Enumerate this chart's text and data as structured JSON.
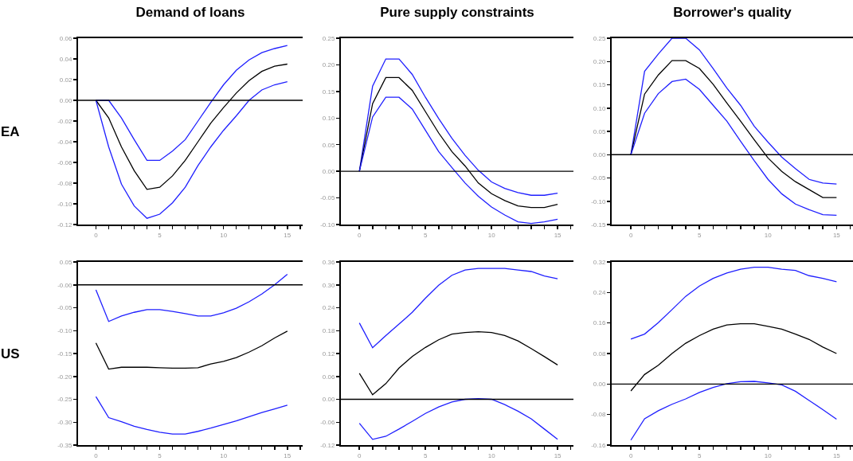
{
  "chart_data": [
    {
      "type": "line",
      "title": "Demand of loans",
      "ylabel": "EA",
      "x": [
        0,
        1,
        2,
        3,
        4,
        5,
        6,
        7,
        8,
        9,
        10,
        11,
        12,
        13,
        14,
        15
      ],
      "xlim": [
        -1.4,
        16.2
      ],
      "xticks": [
        0,
        {
          "value": 1,
          "label": null
        },
        {
          "value": 2,
          "label": null
        },
        {
          "value": 3,
          "label": null
        },
        {
          "value": 4,
          "label": null
        },
        5,
        {
          "value": 6,
          "label": null
        },
        {
          "value": 7,
          "label": null
        },
        {
          "value": 8,
          "label": null
        },
        {
          "value": 9,
          "label": null
        },
        10,
        {
          "value": 11,
          "label": null
        },
        {
          "value": 12,
          "label": null
        },
        {
          "value": 13,
          "label": null
        },
        {
          "value": 14,
          "label": null
        },
        15,
        {
          "value": 16,
          "label": null
        }
      ],
      "ylim": [
        -0.12,
        0.06
      ],
      "yticks": [
        {
          "value": -0.12,
          "label": "-0.12"
        },
        {
          "value": -0.1,
          "label": "-0.10"
        },
        {
          "value": -0.08,
          "label": "-0.08"
        },
        {
          "value": -0.06,
          "label": "-0.06"
        },
        {
          "value": -0.04,
          "label": "-0.04"
        },
        {
          "value": -0.02,
          "label": "-0.02"
        },
        {
          "value": 0,
          "label": "0.00"
        },
        {
          "value": 0.02,
          "label": "0.02"
        },
        {
          "value": 0.04,
          "label": "0.04"
        },
        {
          "value": 0.06,
          "label": "0.06"
        }
      ],
      "ref_lines": [
        {
          "axis": "y",
          "value": 0,
          "color": "#000000"
        }
      ],
      "series": [
        {
          "color": "#1f1fff",
          "values": [
            0,
            0,
            -0.017,
            -0.038,
            -0.058,
            -0.058,
            -0.049,
            -0.038,
            -0.02,
            -0.002,
            0.015,
            0.029,
            0.039,
            0.046,
            0.05,
            0.053
          ]
        },
        {
          "color": "#000000",
          "values": [
            0,
            -0.017,
            -0.045,
            -0.068,
            -0.086,
            -0.084,
            -0.073,
            -0.058,
            -0.04,
            -0.022,
            -0.007,
            0.007,
            0.019,
            0.028,
            0.033,
            0.035
          ]
        },
        {
          "color": "#1f1fff",
          "values": [
            0,
            -0.045,
            -0.081,
            -0.102,
            -0.114,
            -0.11,
            -0.099,
            -0.084,
            -0.063,
            -0.045,
            -0.029,
            -0.015,
            0.0,
            0.01,
            0.015,
            0.018
          ]
        }
      ]
    },
    {
      "type": "line",
      "title": "Pure supply constraints",
      "x": [
        0,
        1,
        2,
        3,
        4,
        5,
        6,
        7,
        8,
        9,
        10,
        11,
        12,
        13,
        14,
        15
      ],
      "xlim": [
        -1.4,
        16.2
      ],
      "xticks": [
        0,
        {
          "value": 1,
          "label": null
        },
        {
          "value": 2,
          "label": null
        },
        {
          "value": 3,
          "label": null
        },
        {
          "value": 4,
          "label": null
        },
        5,
        {
          "value": 6,
          "label": null
        },
        {
          "value": 7,
          "label": null
        },
        {
          "value": 8,
          "label": null
        },
        {
          "value": 9,
          "label": null
        },
        10,
        {
          "value": 11,
          "label": null
        },
        {
          "value": 12,
          "label": null
        },
        {
          "value": 13,
          "label": null
        },
        {
          "value": 14,
          "label": null
        },
        15,
        {
          "value": 16,
          "label": null
        }
      ],
      "ylim": [
        -0.1,
        0.25
      ],
      "yticks": [
        {
          "value": -0.1,
          "label": "-0.10"
        },
        {
          "value": -0.05,
          "label": "-0.05"
        },
        {
          "value": 0,
          "label": "0.00"
        },
        {
          "value": 0.05,
          "label": "0.05"
        },
        {
          "value": 0.1,
          "label": "0.10"
        },
        {
          "value": 0.15,
          "label": "0.15"
        },
        {
          "value": 0.2,
          "label": "0.20"
        },
        {
          "value": 0.25,
          "label": "0.25"
        }
      ],
      "ref_lines": [
        {
          "axis": "y",
          "value": 0,
          "color": "#000000"
        }
      ],
      "series": [
        {
          "color": "#1f1fff",
          "values": [
            0,
            0.16,
            0.211,
            0.211,
            0.182,
            0.139,
            0.099,
            0.062,
            0.03,
            0.002,
            -0.02,
            -0.032,
            -0.04,
            -0.045,
            -0.045,
            -0.041
          ]
        },
        {
          "color": "#000000",
          "values": [
            0,
            0.127,
            0.176,
            0.176,
            0.152,
            0.112,
            0.072,
            0.037,
            0.01,
            -0.022,
            -0.042,
            -0.055,
            -0.065,
            -0.068,
            -0.068,
            -0.062
          ]
        },
        {
          "color": "#1f1fff",
          "values": [
            0,
            0.102,
            0.139,
            0.139,
            0.117,
            0.077,
            0.037,
            0.007,
            -0.022,
            -0.047,
            -0.067,
            -0.082,
            -0.095,
            -0.098,
            -0.095,
            -0.09
          ]
        }
      ]
    },
    {
      "type": "line",
      "title": "Borrower's quality",
      "x": [
        0,
        1,
        2,
        3,
        4,
        5,
        6,
        7,
        8,
        9,
        10,
        11,
        12,
        13,
        14,
        15
      ],
      "xlim": [
        -1.4,
        16.2
      ],
      "xticks": [
        0,
        {
          "value": 1,
          "label": null
        },
        {
          "value": 2,
          "label": null
        },
        {
          "value": 3,
          "label": null
        },
        {
          "value": 4,
          "label": null
        },
        5,
        {
          "value": 6,
          "label": null
        },
        {
          "value": 7,
          "label": null
        },
        {
          "value": 8,
          "label": null
        },
        {
          "value": 9,
          "label": null
        },
        10,
        {
          "value": 11,
          "label": null
        },
        {
          "value": 12,
          "label": null
        },
        {
          "value": 13,
          "label": null
        },
        {
          "value": 14,
          "label": null
        },
        15,
        {
          "value": 16,
          "label": null
        }
      ],
      "ylim": [
        -0.15,
        0.25
      ],
      "yticks": [
        {
          "value": -0.15,
          "label": "-0.15"
        },
        {
          "value": -0.1,
          "label": "-0.10"
        },
        {
          "value": -0.05,
          "label": "-0.05"
        },
        {
          "value": 0,
          "label": "0.00"
        },
        {
          "value": 0.05,
          "label": "0.05"
        },
        {
          "value": 0.1,
          "label": "0.10"
        },
        {
          "value": 0.15,
          "label": "0.15"
        },
        {
          "value": 0.2,
          "label": "0.20"
        },
        {
          "value": 0.25,
          "label": "0.25"
        }
      ],
      "ref_lines": [
        {
          "axis": "y",
          "value": 0,
          "color": "#000000"
        }
      ],
      "series": [
        {
          "color": "#1f1fff",
          "values": [
            0,
            0.179,
            0.216,
            0.25,
            0.25,
            0.225,
            0.185,
            0.143,
            0.106,
            0.061,
            0.027,
            -0.005,
            -0.03,
            -0.053,
            -0.061,
            -0.063
          ]
        },
        {
          "color": "#000000",
          "values": [
            0,
            0.13,
            0.171,
            0.202,
            0.202,
            0.185,
            0.151,
            0.111,
            0.072,
            0.032,
            -0.007,
            -0.036,
            -0.058,
            -0.075,
            -0.092,
            -0.092
          ]
        },
        {
          "color": "#1f1fff",
          "values": [
            0,
            0.089,
            0.131,
            0.157,
            0.162,
            0.14,
            0.106,
            0.072,
            0.029,
            -0.013,
            -0.053,
            -0.084,
            -0.106,
            -0.118,
            -0.129,
            -0.13
          ]
        }
      ]
    },
    {
      "type": "line",
      "ylabel": "US",
      "x": [
        0,
        1,
        2,
        3,
        4,
        5,
        6,
        7,
        8,
        9,
        10,
        11,
        12,
        13,
        14,
        15
      ],
      "xlim": [
        -1.4,
        16.2
      ],
      "xticks": [
        0,
        {
          "value": 1,
          "label": null
        },
        {
          "value": 2,
          "label": null
        },
        {
          "value": 3,
          "label": null
        },
        {
          "value": 4,
          "label": null
        },
        5,
        {
          "value": 6,
          "label": null
        },
        {
          "value": 7,
          "label": null
        },
        {
          "value": 8,
          "label": null
        },
        {
          "value": 9,
          "label": null
        },
        10,
        {
          "value": 11,
          "label": null
        },
        {
          "value": 12,
          "label": null
        },
        {
          "value": 13,
          "label": null
        },
        {
          "value": 14,
          "label": null
        },
        15,
        {
          "value": 16,
          "label": null
        }
      ],
      "ylim": [
        -0.35,
        0.05
      ],
      "yticks": [
        {
          "value": -0.35,
          "label": "-0.35"
        },
        {
          "value": -0.3,
          "label": "-0.30"
        },
        {
          "value": -0.25,
          "label": "-0.25"
        },
        {
          "value": -0.2,
          "label": "-0.20"
        },
        {
          "value": -0.15,
          "label": "-0.15"
        },
        {
          "value": -0.1,
          "label": "-0.10"
        },
        {
          "value": -0.05,
          "label": "-0.05"
        },
        {
          "value": 0,
          "label": "-0.00"
        },
        {
          "value": 0.05,
          "label": "0.05"
        }
      ],
      "ref_lines": [
        {
          "axis": "y",
          "value": 0,
          "color": "#000000"
        }
      ],
      "series": [
        {
          "color": "#1f1fff",
          "values": [
            -0.011,
            -0.08,
            -0.068,
            -0.06,
            -0.054,
            -0.054,
            -0.058,
            -0.063,
            -0.068,
            -0.068,
            -0.061,
            -0.051,
            -0.037,
            -0.02,
            0.0,
            0.023
          ]
        },
        {
          "color": "#000000",
          "values": [
            -0.127,
            -0.184,
            -0.18,
            -0.18,
            -0.18,
            -0.181,
            -0.182,
            -0.182,
            -0.181,
            -0.173,
            -0.167,
            -0.159,
            -0.147,
            -0.133,
            -0.116,
            -0.101
          ]
        },
        {
          "color": "#1f1fff",
          "values": [
            -0.244,
            -0.29,
            -0.299,
            -0.309,
            -0.316,
            -0.322,
            -0.326,
            -0.326,
            -0.32,
            -0.313,
            -0.305,
            -0.297,
            -0.288,
            -0.279,
            -0.271,
            -0.263
          ]
        }
      ]
    },
    {
      "type": "line",
      "x": [
        0,
        1,
        2,
        3,
        4,
        5,
        6,
        7,
        8,
        9,
        10,
        11,
        12,
        13,
        14,
        15
      ],
      "xlim": [
        -1.4,
        16.2
      ],
      "xticks": [
        0,
        {
          "value": 1,
          "label": null
        },
        {
          "value": 2,
          "label": null
        },
        {
          "value": 3,
          "label": null
        },
        {
          "value": 4,
          "label": null
        },
        5,
        {
          "value": 6,
          "label": null
        },
        {
          "value": 7,
          "label": null
        },
        {
          "value": 8,
          "label": null
        },
        {
          "value": 9,
          "label": null
        },
        10,
        {
          "value": 11,
          "label": null
        },
        {
          "value": 12,
          "label": null
        },
        {
          "value": 13,
          "label": null
        },
        {
          "value": 14,
          "label": null
        },
        15,
        {
          "value": 16,
          "label": null
        }
      ],
      "ylim": [
        -0.12,
        0.36
      ],
      "yticks": [
        {
          "value": -0.12,
          "label": "-0.12"
        },
        {
          "value": -0.06,
          "label": "-0.06"
        },
        {
          "value": 0,
          "label": "0.00"
        },
        {
          "value": 0.06,
          "label": "0.06"
        },
        {
          "value": 0.12,
          "label": "0.12"
        },
        {
          "value": 0.18,
          "label": "0.18"
        },
        {
          "value": 0.24,
          "label": "0.24"
        },
        {
          "value": 0.3,
          "label": "0.30"
        },
        {
          "value": 0.36,
          "label": "0.36"
        }
      ],
      "ref_lines": [
        {
          "axis": "y",
          "value": 0,
          "color": "#000000"
        }
      ],
      "series": [
        {
          "color": "#1f1fff",
          "values": [
            0.2,
            0.135,
            0.167,
            0.197,
            0.228,
            0.265,
            0.299,
            0.325,
            0.339,
            0.343,
            0.343,
            0.343,
            0.339,
            0.335,
            0.323,
            0.316
          ]
        },
        {
          "color": "#000000",
          "values": [
            0.068,
            0.012,
            0.041,
            0.082,
            0.112,
            0.136,
            0.156,
            0.171,
            0.175,
            0.177,
            0.175,
            0.167,
            0.153,
            0.133,
            0.112,
            0.09
          ]
        },
        {
          "color": "#1f1fff",
          "values": [
            -0.063,
            -0.105,
            -0.097,
            -0.078,
            -0.058,
            -0.037,
            -0.02,
            -0.007,
            0.0,
            0.002,
            0.0,
            -0.014,
            -0.031,
            -0.051,
            -0.078,
            -0.105
          ]
        }
      ]
    },
    {
      "type": "line",
      "x": [
        0,
        1,
        2,
        3,
        4,
        5,
        6,
        7,
        8,
        9,
        10,
        11,
        12,
        13,
        14,
        15
      ],
      "xlim": [
        -1.4,
        16.2
      ],
      "xticks": [
        0,
        {
          "value": 1,
          "label": null
        },
        {
          "value": 2,
          "label": null
        },
        {
          "value": 3,
          "label": null
        },
        {
          "value": 4,
          "label": null
        },
        5,
        {
          "value": 6,
          "label": null
        },
        {
          "value": 7,
          "label": null
        },
        {
          "value": 8,
          "label": null
        },
        {
          "value": 9,
          "label": null
        },
        10,
        {
          "value": 11,
          "label": null
        },
        {
          "value": 12,
          "label": null
        },
        {
          "value": 13,
          "label": null
        },
        {
          "value": 14,
          "label": null
        },
        15,
        {
          "value": 16,
          "label": null
        }
      ],
      "ylim": [
        -0.16,
        0.32
      ],
      "yticks": [
        {
          "value": -0.16,
          "label": "-0.16"
        },
        {
          "value": -0.08,
          "label": "-0.08"
        },
        {
          "value": 0,
          "label": "0.00"
        },
        {
          "value": 0.08,
          "label": "0.08"
        },
        {
          "value": 0.16,
          "label": "0.16"
        },
        {
          "value": 0.24,
          "label": "0.24"
        },
        {
          "value": 0.32,
          "label": "0.32"
        }
      ],
      "ref_lines": [
        {
          "axis": "y",
          "value": 0,
          "color": "#000000"
        }
      ],
      "series": [
        {
          "color": "#1f1fff",
          "values": [
            0.118,
            0.131,
            0.161,
            0.195,
            0.23,
            0.257,
            0.277,
            0.291,
            0.301,
            0.306,
            0.306,
            0.301,
            0.298,
            0.284,
            0.277,
            0.268
          ]
        },
        {
          "color": "#000000",
          "values": [
            -0.018,
            0.025,
            0.049,
            0.08,
            0.107,
            0.127,
            0.144,
            0.155,
            0.158,
            0.158,
            0.151,
            0.144,
            0.131,
            0.117,
            0.097,
            0.08
          ]
        },
        {
          "color": "#1f1fff",
          "values": [
            -0.147,
            -0.091,
            -0.07,
            -0.053,
            -0.039,
            -0.022,
            -0.009,
            0.001,
            0.006,
            0.007,
            0.003,
            -0.002,
            -0.019,
            -0.043,
            -0.067,
            -0.092
          ]
        }
      ]
    }
  ]
}
